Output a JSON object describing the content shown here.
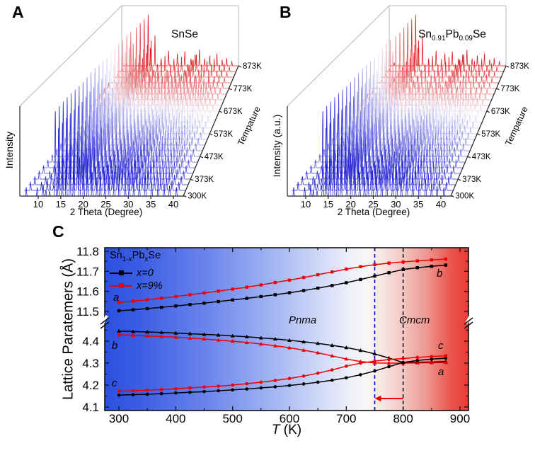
{
  "panel_a": {
    "label": "A",
    "sample": "SnSe",
    "xlabel": "2 Theta (Degree)",
    "ylabel": "Intensity",
    "x_tick_labels": [
      "10",
      "15",
      "20",
      "25",
      "30",
      "35",
      "40"
    ],
    "temp_axis_label": "Tempature"
  },
  "panel_b": {
    "label": "B",
    "sample_parts": {
      "base1": "Sn",
      "sub1": "0.91",
      "base2": "Pb",
      "sub2": "0.09",
      "base3": "Se"
    },
    "xlabel": "2 Theta (Degree)",
    "ylabel": "Intensity (a.u.)",
    "x_tick_labels": [
      "10",
      "15",
      "20",
      "25",
      "30",
      "35",
      "40"
    ],
    "temp_axis_label": "Tempature"
  },
  "panel_c": {
    "label": "C",
    "ylabel": "Lattice Paratemers (Å)",
    "xlabel": {
      "italic": "T",
      "rest": " (K)"
    },
    "x_tick_labels": [
      "300",
      "400",
      "500",
      "600",
      "700",
      "800",
      "900"
    ],
    "y_tick_labels_top": [
      "11.8",
      "11.7",
      "11.6",
      "11.5"
    ],
    "y_tick_labels_bottom": [
      "4.4",
      "4.3",
      "4.2",
      "4.1"
    ],
    "legend": {
      "title_parts": {
        "base1": "Sn",
        "sub1": "1-x",
        "base2": "Pb",
        "sub2": "x",
        "base3": "Se"
      },
      "items": [
        {
          "label": "x=0",
          "color": "#000000"
        },
        {
          "label": "x=9%",
          "color": "#ee0000"
        }
      ]
    },
    "phase_left": "Pnma",
    "phase_right": "Cmcm",
    "curve_labels_left": [
      "a",
      "b",
      "c"
    ],
    "curve_labels_right": [
      "b",
      "c",
      "a"
    ],
    "colors": {
      "black": "#000000",
      "red": "#ee0000",
      "vline_blue": "#0000f0",
      "vline_black": "#1a1a1a"
    }
  },
  "chart_data": [
    {
      "type": "line",
      "subtype": "waterfall-3d-xrd",
      "panel": "A",
      "sample": "SnSe",
      "xlabel": "2 Theta (Degree)",
      "ylabel": "Intensity",
      "zlabel": "Tempature",
      "x_range_degrees": [
        10,
        40
      ],
      "temperatures_K": {
        "start": 298,
        "step": 25,
        "count": 24
      },
      "labeled_temps": [
        {
          "label": "300K",
          "K": 300
        },
        {
          "label": "373K",
          "K": 373
        },
        {
          "label": "473K",
          "K": 473
        },
        {
          "label": "573K",
          "K": 573
        },
        {
          "label": "673K",
          "K": 673
        },
        {
          "label": "773K",
          "K": 773
        },
        {
          "label": "873K",
          "K": 873
        }
      ],
      "phase_transition_K": 798,
      "colors": {
        "low_T": "#1c1cd0",
        "mid": "#f2f2fb",
        "high_T": "#dd1616"
      },
      "peaks_pnma": [
        [
          8.2,
          0.1
        ],
        [
          10.6,
          0.1
        ],
        [
          11.9,
          0.13
        ],
        [
          12.5,
          0.07
        ],
        [
          13.3,
          0.06
        ],
        [
          14.55,
          1.0
        ],
        [
          15.25,
          0.8
        ],
        [
          16.05,
          0.45
        ],
        [
          16.95,
          0.6
        ],
        [
          17.75,
          0.42
        ],
        [
          18.55,
          0.3
        ],
        [
          19.85,
          0.45
        ],
        [
          20.75,
          0.38
        ],
        [
          21.6,
          0.3
        ],
        [
          22.6,
          0.28
        ],
        [
          23.65,
          0.22
        ],
        [
          24.4,
          0.28
        ],
        [
          25.4,
          0.3
        ],
        [
          26.3,
          0.24
        ],
        [
          27.4,
          0.28
        ],
        [
          28.5,
          0.26
        ],
        [
          29.8,
          0.28
        ],
        [
          30.7,
          0.3
        ],
        [
          31.7,
          0.22
        ],
        [
          32.9,
          0.2
        ],
        [
          34.2,
          0.24
        ],
        [
          35.6,
          0.18
        ],
        [
          37.0,
          0.2
        ],
        [
          38.3,
          0.15
        ],
        [
          39.5,
          0.12
        ],
        [
          41.0,
          0.1
        ]
      ],
      "peaks_cmcm": [
        [
          8.4,
          0.06
        ],
        [
          12.2,
          0.08
        ],
        [
          15.0,
          1.0
        ],
        [
          15.7,
          0.35
        ],
        [
          17.1,
          0.6
        ],
        [
          19.0,
          0.14
        ],
        [
          21.3,
          0.3
        ],
        [
          24.0,
          0.24
        ],
        [
          26.3,
          0.28
        ],
        [
          28.2,
          0.14
        ],
        [
          29.5,
          0.22
        ],
        [
          30.8,
          0.32
        ],
        [
          32.4,
          0.14
        ],
        [
          34.0,
          0.2
        ],
        [
          36.2,
          0.24
        ],
        [
          37.8,
          0.12
        ],
        [
          39.2,
          0.15
        ],
        [
          40.8,
          0.09
        ]
      ]
    },
    {
      "type": "line",
      "subtype": "waterfall-3d-xrd",
      "panel": "B",
      "sample": "Sn0.91Pb0.09Se",
      "xlabel": "2 Theta (Degree)",
      "ylabel": "Intensity (a.u.)",
      "zlabel": "Tempature",
      "x_range_degrees": [
        10,
        40
      ],
      "temperatures_K": {
        "start": 298,
        "step": 25,
        "count": 24
      },
      "labeled_temps": [
        {
          "label": "300K",
          "K": 300
        },
        {
          "label": "373K",
          "K": 373
        },
        {
          "label": "473K",
          "K": 473
        },
        {
          "label": "573K",
          "K": 573
        },
        {
          "label": "673K",
          "K": 673
        },
        {
          "label": "773K",
          "K": 773
        },
        {
          "label": "873K",
          "K": 873
        }
      ],
      "phase_transition_K": 748,
      "colors": {
        "low_T": "#1c1cd0",
        "mid": "#f2f2fb",
        "high_T": "#dd1616"
      },
      "peaks_same_as_panel": "A"
    },
    {
      "type": "line",
      "panel": "C",
      "title": "Lattice parameters vs temperature",
      "xlabel": "T (K)",
      "ylabel": "Lattice Paratemers (Å)",
      "xlim": [
        275,
        915
      ],
      "ylim_top": [
        11.45,
        11.8
      ],
      "ylim_bottom": [
        4.1,
        4.45
      ],
      "x": [
        300,
        325,
        350,
        375,
        400,
        425,
        450,
        475,
        500,
        525,
        550,
        575,
        600,
        625,
        650,
        675,
        700,
        725,
        750,
        775,
        800,
        825,
        850,
        875
      ],
      "series": [
        {
          "name": "a axis, x=0",
          "segment": "top",
          "marker": "square",
          "color": "#000000",
          "values": [
            11.503,
            11.508,
            11.514,
            11.52,
            11.527,
            11.534,
            11.541,
            11.549,
            11.557,
            11.565,
            11.574,
            11.583,
            11.593,
            11.604,
            11.616,
            11.629,
            11.643,
            11.659,
            11.676,
            11.693,
            11.709,
            11.718,
            11.725,
            11.731
          ]
        },
        {
          "name": "a axis, x=9%",
          "segment": "top",
          "marker": "square",
          "color": "#ee0000",
          "values": [
            11.545,
            11.551,
            11.558,
            11.566,
            11.574,
            11.583,
            11.592,
            11.601,
            11.611,
            11.621,
            11.632,
            11.644,
            11.656,
            11.669,
            11.683,
            11.697,
            11.711,
            11.723,
            11.733,
            11.741,
            11.747,
            11.752,
            11.757,
            11.761
          ]
        },
        {
          "name": "b axis, x=0",
          "segment": "bottom",
          "marker": "triangle",
          "color": "#000000",
          "values": [
            4.446,
            4.444,
            4.442,
            4.44,
            4.437,
            4.434,
            4.431,
            4.428,
            4.424,
            4.42,
            4.415,
            4.41,
            4.404,
            4.397,
            4.39,
            4.381,
            4.371,
            4.358,
            4.342,
            4.323,
            4.303,
            4.304,
            4.305,
            4.307
          ]
        },
        {
          "name": "b axis, x=9%",
          "segment": "bottom",
          "marker": "triangle",
          "color": "#ee0000",
          "values": [
            4.429,
            4.427,
            4.424,
            4.421,
            4.418,
            4.414,
            4.41,
            4.405,
            4.4,
            4.394,
            4.387,
            4.379,
            4.37,
            4.359,
            4.347,
            4.333,
            4.319,
            4.307,
            4.301,
            4.3,
            4.3,
            4.301,
            4.302,
            4.303
          ]
        },
        {
          "name": "c axis, x=0",
          "segment": "bottom",
          "marker": "circle",
          "color": "#000000",
          "values": [
            4.154,
            4.156,
            4.158,
            4.161,
            4.164,
            4.167,
            4.17,
            4.174,
            4.178,
            4.182,
            4.187,
            4.192,
            4.198,
            4.205,
            4.213,
            4.222,
            4.233,
            4.247,
            4.264,
            4.284,
            4.303,
            4.312,
            4.318,
            4.323
          ]
        },
        {
          "name": "c axis, x=9%",
          "segment": "bottom",
          "marker": "circle",
          "color": "#ee0000",
          "values": [
            4.172,
            4.174,
            4.177,
            4.18,
            4.183,
            4.187,
            4.191,
            4.195,
            4.2,
            4.206,
            4.213,
            4.221,
            4.23,
            4.241,
            4.254,
            4.269,
            4.286,
            4.3,
            4.309,
            4.316,
            4.321,
            4.326,
            4.33,
            4.334
          ]
        }
      ],
      "vlines": [
        {
          "x": 750,
          "style": "dashed",
          "color": "#0000f0"
        },
        {
          "x": 800,
          "style": "dashed",
          "color": "#1a1a1a"
        }
      ],
      "arrow": {
        "from_K": 800,
        "to_K": 750,
        "color": "#ee0000"
      },
      "annotations": {
        "phase_left": "Pnma",
        "phase_right": "Cmcm"
      },
      "legend_position": "top-left",
      "grid": false
    }
  ]
}
